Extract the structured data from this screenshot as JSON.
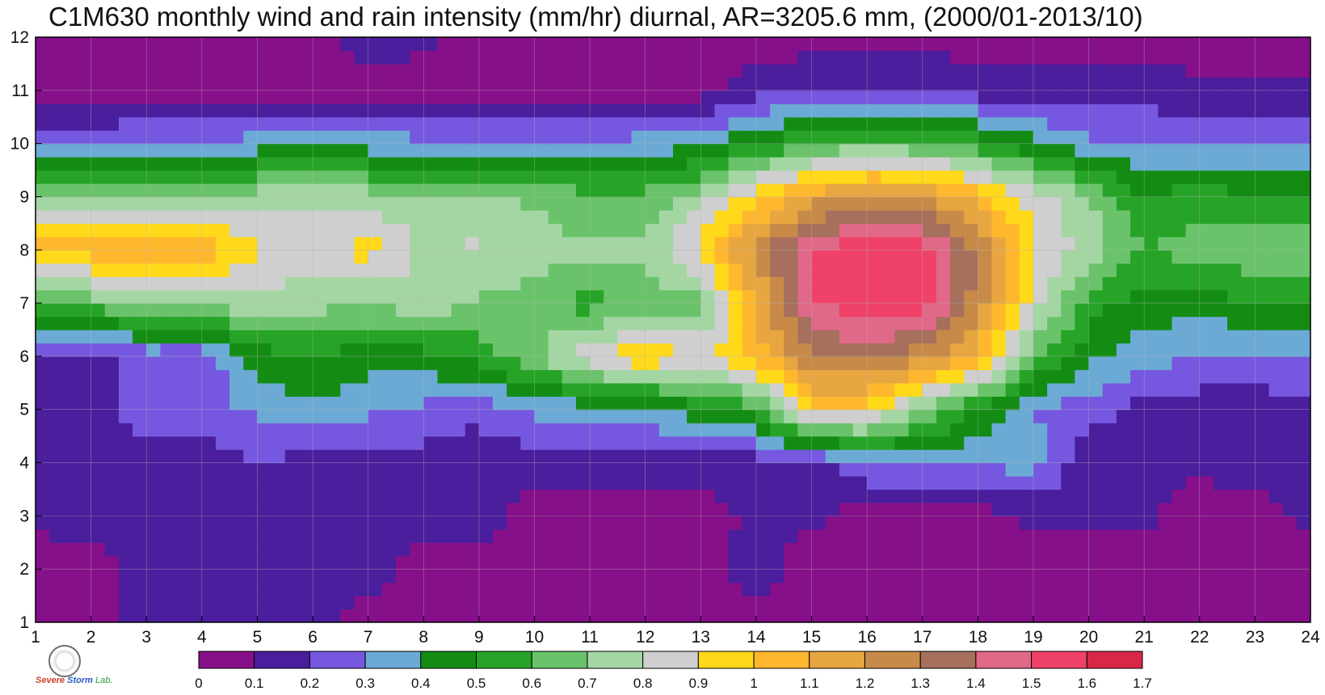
{
  "chart_data": {
    "type": "heatmap",
    "title": "C1M630 monthly wind and rain intensity (mm/hr) diurnal, AR=3205.6 mm, (2000/01-2013/10)",
    "x_ticks": [
      1,
      2,
      3,
      4,
      5,
      6,
      7,
      8,
      9,
      10,
      11,
      12,
      13,
      14,
      15,
      16,
      17,
      18,
      19,
      20,
      21,
      22,
      23,
      24
    ],
    "y_ticks": [
      1,
      2,
      3,
      4,
      5,
      6,
      7,
      8,
      9,
      10,
      11,
      12
    ],
    "xlim": [
      1,
      24
    ],
    "ylim": [
      1,
      12
    ],
    "grid": true,
    "rows_y": [
      1,
      2,
      3,
      4,
      5,
      6,
      7,
      8,
      9,
      10,
      11,
      12
    ],
    "z": [
      [
        0.05,
        0.05,
        0.15,
        0.12,
        0.12,
        0.15,
        0.05,
        0.05,
        0.05,
        0.05,
        0.05,
        0.05,
        0.05,
        0.05,
        0.05,
        0.05,
        0.05,
        0.05,
        0.05,
        0.05,
        0.05,
        0.05,
        0.05,
        0.05
      ],
      [
        0.05,
        0.05,
        0.15,
        0.15,
        0.15,
        0.12,
        0.15,
        0.05,
        0.05,
        0.05,
        0.05,
        0.05,
        0.05,
        0.15,
        0.05,
        0.05,
        0.05,
        0.05,
        0.05,
        0.05,
        0.05,
        0.05,
        0.05,
        0.05
      ],
      [
        0.12,
        0.15,
        0.15,
        0.15,
        0.15,
        0.15,
        0.15,
        0.15,
        0.15,
        0.05,
        0.05,
        0.05,
        0.05,
        0.12,
        0.12,
        0.05,
        0.05,
        0.05,
        0.12,
        0.12,
        0.12,
        0.05,
        0.05,
        0.12
      ],
      [
        0.15,
        0.15,
        0.15,
        0.15,
        0.2,
        0.15,
        0.15,
        0.15,
        0.15,
        0.15,
        0.15,
        0.15,
        0.15,
        0.15,
        0.15,
        0.3,
        0.3,
        0.3,
        0.35,
        0.12,
        0.12,
        0.12,
        0.15,
        0.15
      ],
      [
        0.15,
        0.15,
        0.25,
        0.25,
        0.32,
        0.38,
        0.32,
        0.28,
        0.22,
        0.32,
        0.35,
        0.35,
        0.48,
        0.55,
        1.0,
        0.95,
        0.7,
        0.5,
        0.3,
        0.25,
        0.15,
        0.15,
        0.15,
        0.15
      ],
      [
        0.15,
        0.15,
        0.25,
        0.22,
        0.45,
        0.5,
        0.45,
        0.45,
        0.55,
        0.68,
        0.88,
        1.0,
        0.88,
        1.05,
        1.3,
        1.35,
        1.25,
        1.05,
        0.65,
        0.42,
        0.35,
        0.28,
        0.28,
        0.3
      ],
      [
        0.55,
        0.65,
        0.7,
        0.75,
        0.75,
        0.75,
        0.68,
        0.78,
        0.68,
        0.65,
        0.55,
        0.65,
        0.65,
        1.1,
        1.5,
        1.55,
        1.55,
        1.25,
        0.85,
        0.55,
        0.45,
        0.45,
        0.5,
        0.5
      ],
      [
        1.05,
        1.05,
        1.08,
        1.1,
        0.92,
        0.85,
        0.95,
        0.78,
        0.82,
        0.75,
        0.72,
        0.72,
        0.95,
        1.25,
        1.5,
        1.58,
        1.55,
        1.3,
        0.92,
        0.75,
        0.6,
        0.65,
        0.68,
        0.7
      ],
      [
        0.72,
        0.72,
        0.68,
        0.68,
        0.75,
        0.78,
        0.75,
        0.72,
        0.72,
        0.68,
        0.62,
        0.62,
        0.75,
        0.95,
        1.15,
        1.22,
        1.2,
        1.05,
        0.85,
        0.72,
        0.5,
        0.55,
        0.5,
        0.5
      ],
      [
        0.25,
        0.28,
        0.3,
        0.3,
        0.35,
        0.38,
        0.35,
        0.33,
        0.33,
        0.32,
        0.3,
        0.35,
        0.38,
        0.5,
        0.6,
        0.65,
        0.62,
        0.55,
        0.42,
        0.32,
        0.3,
        0.3,
        0.28,
        0.3
      ],
      [
        0.05,
        0.05,
        0.05,
        0.05,
        0.05,
        0.05,
        0.05,
        0.05,
        0.05,
        0.05,
        0.05,
        0.05,
        0.05,
        0.15,
        0.2,
        0.22,
        0.22,
        0.15,
        0.15,
        0.15,
        0.15,
        0.12,
        0.12,
        0.12
      ],
      [
        0.05,
        0.05,
        0.05,
        0.05,
        0.05,
        0.05,
        0.15,
        0.12,
        0.05,
        0.05,
        0.05,
        0.05,
        0.05,
        0.05,
        0.05,
        0.05,
        0.05,
        0.05,
        0.05,
        0.05,
        0.05,
        0.05,
        0.05,
        0.05
      ]
    ],
    "colorbar": {
      "ticks": [
        "0",
        "0.1",
        "0.2",
        "0.3",
        "0.4",
        "0.5",
        "0.6",
        "0.7",
        "0.8",
        "0.9",
        "1",
        "1.1",
        "1.2",
        "1.3",
        "1.4",
        "1.5",
        "1.6",
        "1.7"
      ],
      "colors": [
        "#861089",
        "#4a1e9c",
        "#7658e0",
        "#6caad6",
        "#148c14",
        "#27a427",
        "#6ac36a",
        "#a4d6a4",
        "#cfcfcf",
        "#ffd91a",
        "#ffb82e",
        "#e8a640",
        "#c88a48",
        "#a6705c",
        "#e06888",
        "#f04268",
        "#d82848"
      ]
    },
    "contour_color": "#f2a836",
    "grid_color": "#b4b4b4"
  },
  "logo": {
    "text_parts": [
      "S",
      "evere ",
      "S",
      "torm ",
      "Lab."
    ]
  }
}
